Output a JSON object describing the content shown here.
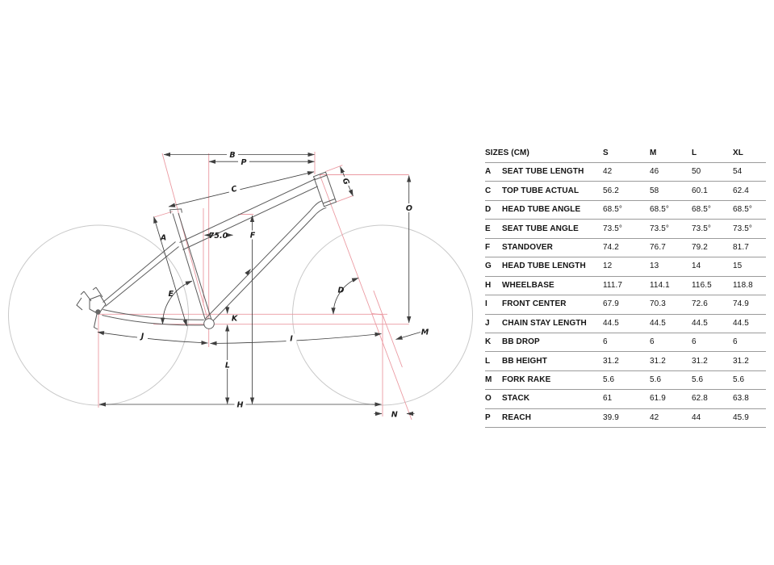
{
  "colors": {
    "construction_pink": "#eb9aa2",
    "dimension_dark": "#3f3f3f",
    "frame_gray": "#5b5b5b",
    "wheel_gray": "#c9c9c9",
    "table_line": "#9b9b9b",
    "text": "#141414"
  },
  "diagram": {
    "labels": {
      "A": "A",
      "B": "B",
      "C": "C",
      "D": "D",
      "E": "E",
      "F": "F",
      "G": "G",
      "H": "H",
      "I": "I",
      "J": "J",
      "K": "K",
      "L": "L",
      "M": "M",
      "N": "N",
      "O": "O",
      "P": "P",
      "seat_offset": "75.0"
    }
  },
  "table": {
    "header": {
      "title": "SIZES (CM)",
      "s": "S",
      "m": "M",
      "l": "L",
      "xl": "XL"
    },
    "rows": [
      {
        "letter": "A",
        "name": "SEAT TUBE LENGTH",
        "s": "42",
        "m": "46",
        "l": "50",
        "xl": "54"
      },
      {
        "letter": "C",
        "name": "TOP TUBE ACTUAL",
        "s": "56.2",
        "m": "58",
        "l": "60.1",
        "xl": "62.4"
      },
      {
        "letter": "D",
        "name": "HEAD TUBE ANGLE",
        "s": "68.5°",
        "m": "68.5°",
        "l": "68.5°",
        "xl": "68.5°"
      },
      {
        "letter": "E",
        "name": "SEAT TUBE ANGLE",
        "s": "73.5°",
        "m": "73.5°",
        "l": "73.5°",
        "xl": "73.5°"
      },
      {
        "letter": "F",
        "name": "STANDOVER",
        "s": "74.2",
        "m": "76.7",
        "l": "79.2",
        "xl": "81.7"
      },
      {
        "letter": "G",
        "name": "HEAD TUBE LENGTH",
        "s": "12",
        "m": "13",
        "l": "14",
        "xl": "15"
      },
      {
        "letter": "H",
        "name": "WHEELBASE",
        "s": "111.7",
        "m": "114.1",
        "l": "116.5",
        "xl": "118.8"
      },
      {
        "letter": "I",
        "name": "FRONT CENTER",
        "s": "67.9",
        "m": "70.3",
        "l": "72.6",
        "xl": "74.9"
      },
      {
        "letter": "J",
        "name": "CHAIN STAY LENGTH",
        "s": "44.5",
        "m": "44.5",
        "l": "44.5",
        "xl": "44.5"
      },
      {
        "letter": "K",
        "name": "BB DROP",
        "s": "6",
        "m": "6",
        "l": "6",
        "xl": "6"
      },
      {
        "letter": "L",
        "name": "BB HEIGHT",
        "s": "31.2",
        "m": "31.2",
        "l": "31.2",
        "xl": "31.2"
      },
      {
        "letter": "M",
        "name": "FORK RAKE",
        "s": "5.6",
        "m": "5.6",
        "l": "5.6",
        "xl": "5.6"
      },
      {
        "letter": "O",
        "name": "STACK",
        "s": "61",
        "m": "61.9",
        "l": "62.8",
        "xl": "63.8"
      },
      {
        "letter": "P",
        "name": "REACH",
        "s": "39.9",
        "m": "42",
        "l": "44",
        "xl": "45.9"
      }
    ]
  }
}
